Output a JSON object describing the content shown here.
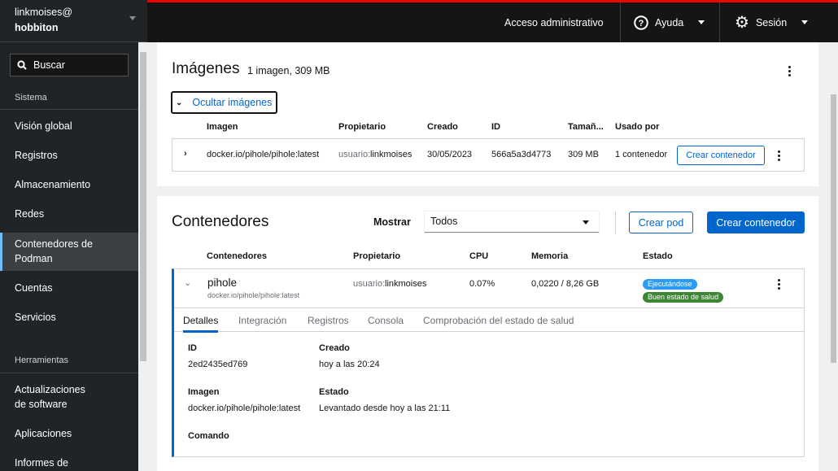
{
  "sidebar": {
    "user": "linkmoises@",
    "host": "hobbiton",
    "search_placeholder": "Buscar",
    "section_system": "Sistema",
    "items": [
      "Visión global",
      "Registros",
      "Almacenamiento",
      "Redes",
      "Contenedores de Podman",
      "Cuentas",
      "Servicios"
    ],
    "section_tools": "Herramientas",
    "tools": [
      "Actualizaciones de software",
      "Aplicaciones",
      "Informes de"
    ]
  },
  "header": {
    "admin": "Acceso administrativo",
    "help": "Ayuda",
    "session": "Sesión"
  },
  "images": {
    "title": "Imágenes",
    "summary": "1 imagen, 309 MB",
    "toggle": "Ocultar imágenes",
    "columns": [
      "Imagen",
      "Propietario",
      "Creado",
      "ID",
      "Tamañ...",
      "Usado por"
    ],
    "row": {
      "image": "docker.io/pihole/pihole:latest",
      "owner_prefix": "usuario:",
      "owner": "linkmoises",
      "created": "30/05/2023",
      "id": "566a5a3d4773",
      "size": "309 MB",
      "used_by": "1 contenedor",
      "action": "Crear contenedor"
    }
  },
  "containers": {
    "title": "Contenedores",
    "show_label": "Mostrar",
    "show_value": "Todos",
    "create_pod": "Crear pod",
    "create_container": "Crear contenedor",
    "columns": [
      "Contenedores",
      "Propietario",
      "CPU",
      "Memoria",
      "Estado"
    ],
    "row": {
      "name": "pihole",
      "image": "docker.io/pihole/pihole:latest",
      "owner_prefix": "usuario:",
      "owner": "linkmoises",
      "cpu": "0.07%",
      "memory": "0,0220 / 8,26 GB",
      "status": "Ejecutándose",
      "health": "Buen estado de salud"
    },
    "tabs": [
      "Detalles",
      "Integración",
      "Registros",
      "Consola",
      "Comprobación del estado de salud"
    ],
    "details": {
      "id_label": "ID",
      "id": "2ed2435ed769",
      "created_label": "Creado",
      "created": "hoy a las 20:24",
      "image_label": "Imagen",
      "image": "docker.io/pihole/pihole:latest",
      "state_label": "Estado",
      "state": "Levantado desde hoy a las 21:11",
      "command_label": "Comando"
    }
  },
  "colors": {
    "accent": "#0066cc",
    "running": "#2b9af3",
    "healthy": "#3e8635",
    "header_border": "#ee0000"
  }
}
